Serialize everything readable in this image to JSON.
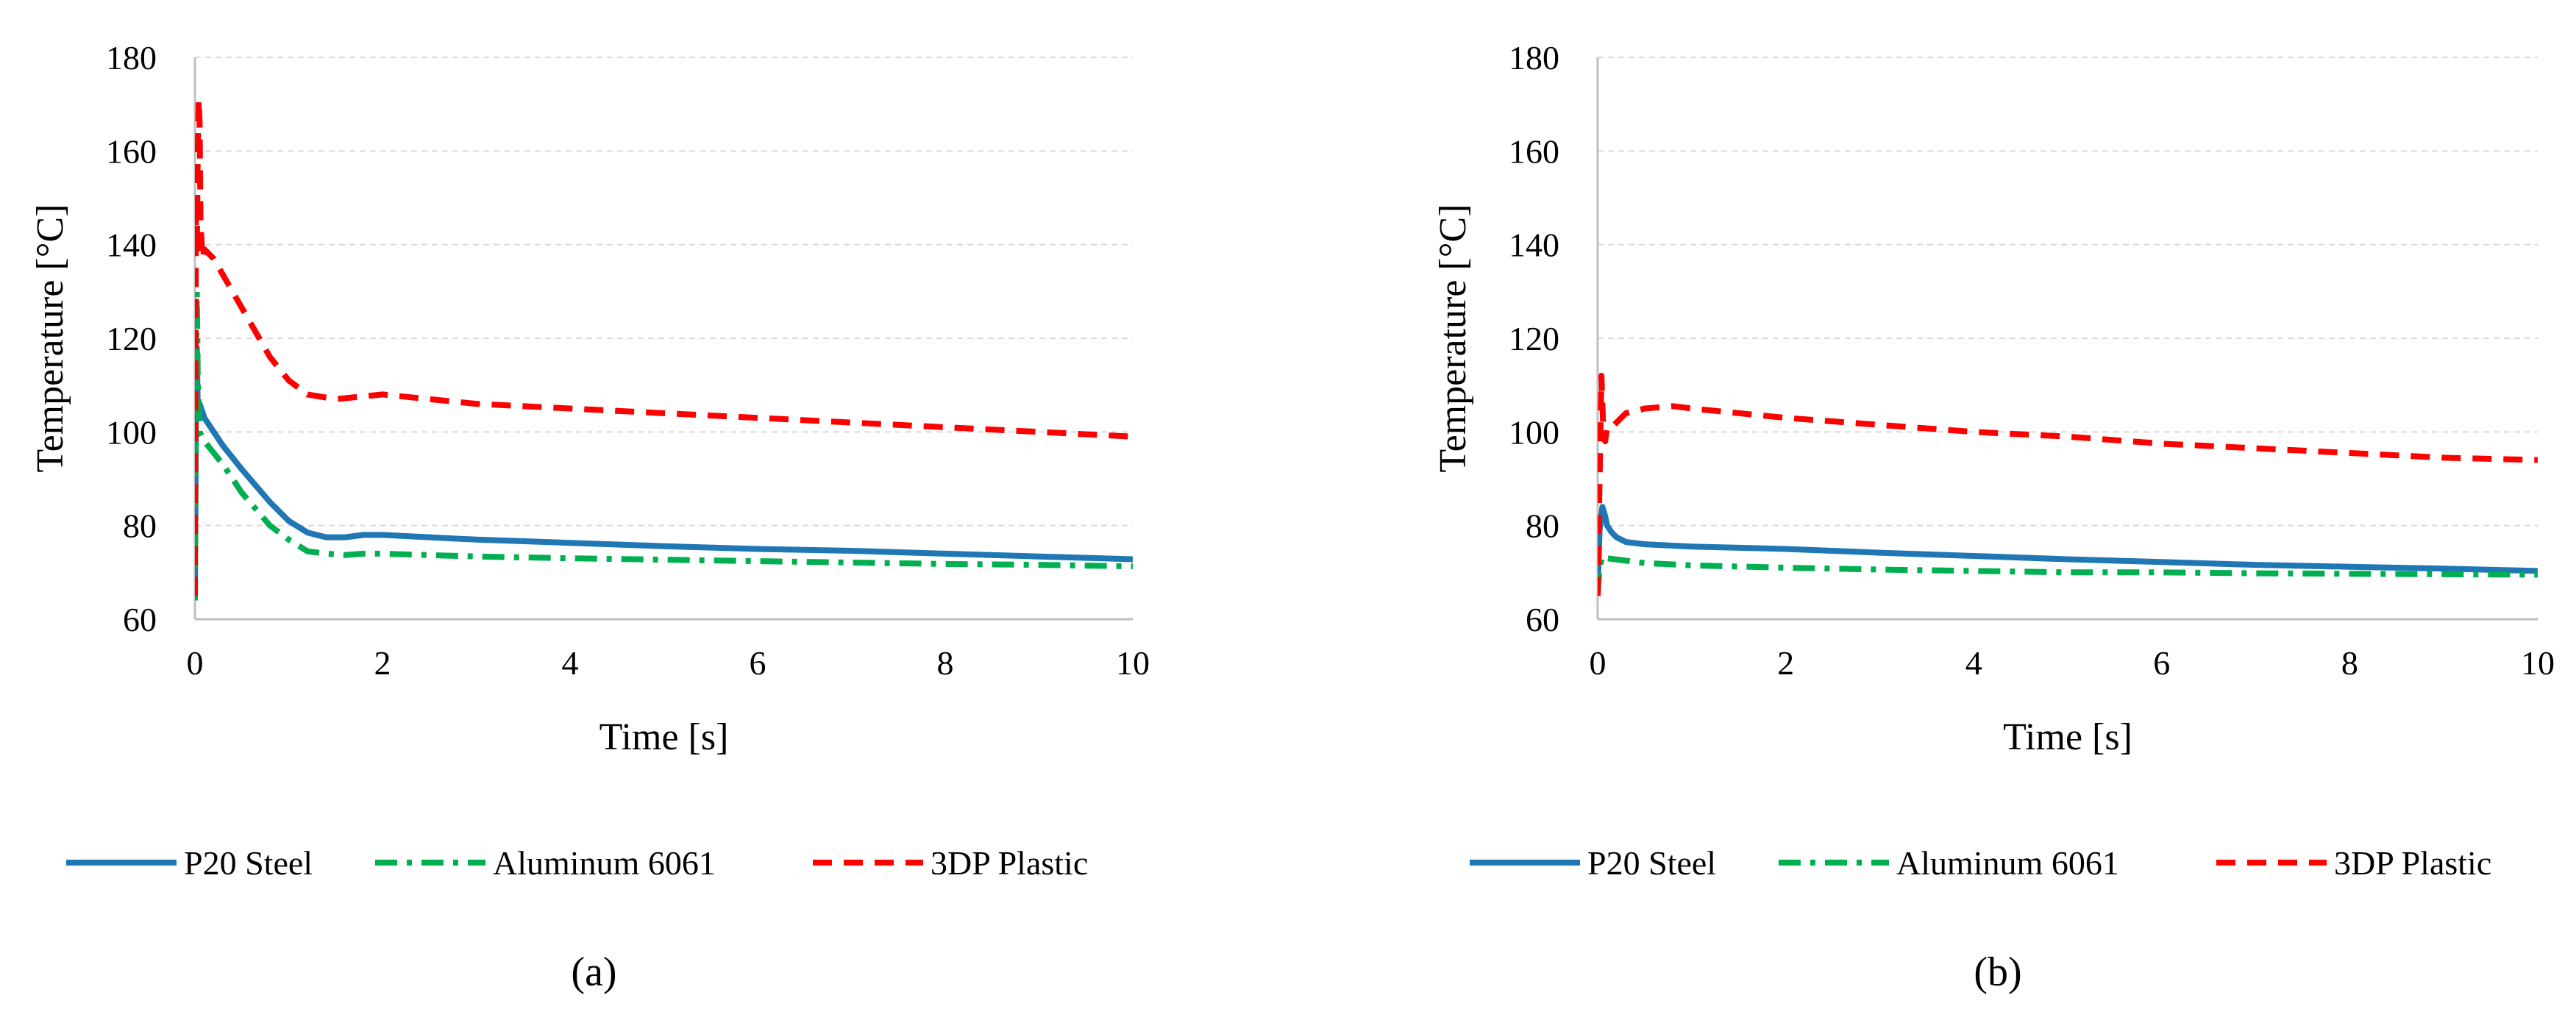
{
  "chart_data": [
    {
      "type": "line",
      "panel_label": "(a)",
      "xlabel": "Time [s]",
      "ylabel": "Temperature [°C]",
      "xlim": [
        0,
        10
      ],
      "ylim": [
        60,
        180
      ],
      "xticks": [
        0,
        2,
        4,
        6,
        8,
        10
      ],
      "yticks": [
        60,
        80,
        100,
        120,
        140,
        160,
        180
      ],
      "grid": "horizontal",
      "legend": "bottom",
      "series": [
        {
          "name": "P20 Steel",
          "color": "#1f77b4",
          "style": "solid",
          "x": [
            0,
            0.01,
            0.02,
            0.03,
            0.05,
            0.1,
            0.3,
            0.5,
            0.8,
            1.0,
            1.2,
            1.4,
            1.6,
            1.8,
            2.0,
            2.5,
            3,
            4,
            5,
            6,
            7,
            8,
            9,
            10
          ],
          "y": [
            66,
            100,
            118,
            105,
            106,
            103,
            97,
            92,
            85,
            81,
            78.5,
            77.5,
            77.5,
            78,
            78,
            77.5,
            77,
            76.3,
            75.6,
            75,
            74.6,
            74,
            73.4,
            72.8
          ]
        },
        {
          "name": "Aluminum 6061",
          "color": "#00b050",
          "style": "dashdot",
          "x": [
            0,
            0.01,
            0.02,
            0.03,
            0.05,
            0.1,
            0.3,
            0.5,
            0.8,
            1.0,
            1.2,
            1.4,
            1.6,
            1.8,
            2.0,
            2.5,
            3,
            4,
            5,
            6,
            7,
            8,
            9,
            10
          ],
          "y": [
            64,
            110,
            130,
            112,
            100,
            98,
            93,
            87,
            80,
            77,
            74.5,
            74,
            73.7,
            74,
            74,
            73.7,
            73.4,
            73,
            72.7,
            72.4,
            72.1,
            71.8,
            71.6,
            71.3
          ]
        },
        {
          "name": "3DP Plastic",
          "color": "#ff0000",
          "style": "dashed",
          "x": [
            0,
            0.01,
            0.02,
            0.03,
            0.04,
            0.05,
            0.06,
            0.08,
            0.1,
            0.2,
            0.4,
            0.6,
            0.8,
            1.0,
            1.2,
            1.5,
            2.0,
            2.5,
            3,
            4,
            5,
            6,
            7,
            8,
            9,
            10
          ],
          "y": [
            65,
            150,
            138,
            160,
            171,
            166,
            145,
            137,
            139,
            137,
            130,
            123,
            116,
            111,
            108,
            107,
            108,
            107,
            106,
            105,
            104,
            103,
            102,
            101,
            100,
            99
          ]
        }
      ]
    },
    {
      "type": "line",
      "panel_label": "(b)",
      "xlabel": "Time [s]",
      "ylabel": "Temperature [°C]",
      "xlim": [
        0,
        10
      ],
      "ylim": [
        60,
        180
      ],
      "xticks": [
        0,
        2,
        4,
        6,
        8,
        10
      ],
      "yticks": [
        60,
        80,
        100,
        120,
        140,
        160,
        180
      ],
      "grid": "horizontal",
      "legend": "bottom",
      "series": [
        {
          "name": "P20 Steel",
          "color": "#1f77b4",
          "style": "solid",
          "x": [
            0,
            0.02,
            0.05,
            0.08,
            0.1,
            0.15,
            0.2,
            0.3,
            0.5,
            1.0,
            2,
            3,
            4,
            5,
            6,
            7,
            8,
            9,
            10
          ],
          "y": [
            66,
            79,
            84,
            82,
            80,
            78.5,
            77.5,
            76.5,
            76,
            75.5,
            75,
            74.2,
            73.5,
            72.8,
            72.2,
            71.6,
            71.2,
            70.8,
            70.3
          ]
        },
        {
          "name": "Aluminum 6061",
          "color": "#00b050",
          "style": "dashdot",
          "x": [
            0,
            0.02,
            0.05,
            0.1,
            0.3,
            0.5,
            1,
            2,
            3,
            4,
            5,
            6,
            7,
            8,
            9,
            10
          ],
          "y": [
            65,
            71,
            73.5,
            73,
            72.5,
            72,
            71.5,
            71,
            70.6,
            70.3,
            70,
            70,
            69.8,
            69.7,
            69.6,
            69.5
          ]
        },
        {
          "name": "3DP Plastic",
          "color": "#ff0000",
          "style": "dashed",
          "x": [
            0,
            0.02,
            0.04,
            0.06,
            0.08,
            0.1,
            0.15,
            0.2,
            0.3,
            0.5,
            0.8,
            1.0,
            2,
            3,
            4,
            5,
            6,
            7,
            8,
            9,
            10
          ],
          "y": [
            65,
            90,
            112,
            100,
            98,
            101,
            101,
            102,
            104,
            105,
            105.5,
            105,
            103,
            101.5,
            100,
            99,
            97.5,
            96.5,
            95.5,
            94.5,
            94
          ]
        }
      ]
    }
  ]
}
